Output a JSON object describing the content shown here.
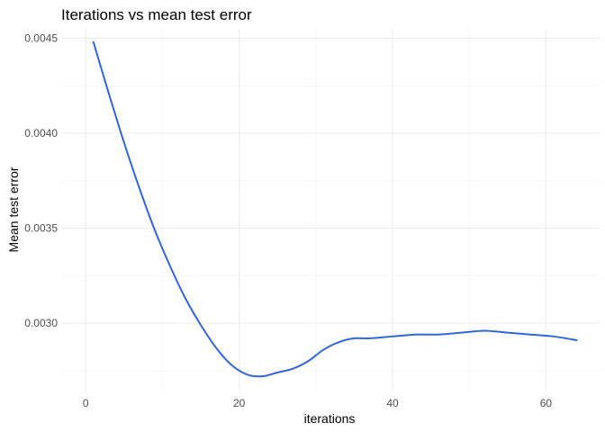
{
  "chart_data": {
    "type": "line",
    "title": "Iterations vs mean test error",
    "xlabel": "iterations",
    "ylabel": "Mean test error",
    "xlim": [
      -3.2,
      67
    ],
    "ylim": [
      0.00264,
      0.00455
    ],
    "x_ticks": [
      0,
      20,
      40,
      60
    ],
    "x_tick_labels": [
      "0",
      "20",
      "40",
      "60"
    ],
    "y_ticks": [
      0.003,
      0.0035,
      0.004,
      0.0045
    ],
    "y_tick_labels": [
      "0.0030",
      "0.0035",
      "0.0040",
      "0.0045"
    ],
    "grid": true,
    "legend": "none",
    "line_color": "#3366d6",
    "series": [
      {
        "x": [
          1,
          3,
          5,
          7,
          9,
          11,
          13,
          15,
          17,
          19,
          21,
          23,
          25,
          27,
          29,
          31,
          33,
          35,
          37,
          40,
          43,
          46,
          49,
          52,
          55,
          58,
          61,
          64
        ],
        "y": [
          0.00448,
          0.00421,
          0.00395,
          0.00371,
          0.00349,
          0.0033,
          0.00313,
          0.00299,
          0.00287,
          0.00278,
          0.00273,
          0.00272,
          0.00274,
          0.00276,
          0.0028,
          0.00286,
          0.0029,
          0.00292,
          0.00292,
          0.00293,
          0.00294,
          0.00294,
          0.00295,
          0.00296,
          0.00295,
          0.00294,
          0.00293,
          0.00291
        ]
      }
    ]
  }
}
